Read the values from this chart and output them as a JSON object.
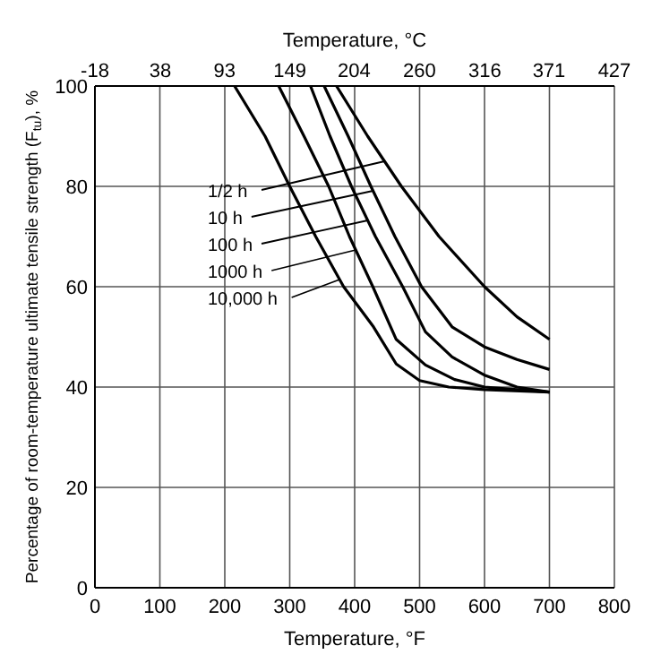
{
  "chart_data": {
    "type": "line",
    "xlabel": "Temperature, °F",
    "x2label": "Temperature, °C",
    "ylabel": "Percentage of room-temperature ultimate tensile strength (F$_{tu}$), %",
    "xlim": [
      0,
      800
    ],
    "xticks": [
      0,
      100,
      200,
      300,
      400,
      500,
      600,
      700,
      800
    ],
    "x2lim": [
      -18,
      427
    ],
    "x2ticks": [
      -18,
      38,
      93,
      149,
      204,
      260,
      316,
      371,
      427
    ],
    "ylim": [
      0,
      100
    ],
    "yticks": [
      0,
      20,
      40,
      60,
      80,
      100
    ],
    "grid": true,
    "marker": "none",
    "line_style": "solid",
    "series": [
      {
        "name": "1/2 h",
        "color": "#000000",
        "x": [
          372,
          420,
          472,
          530,
          600,
          650,
          700
        ],
        "values": [
          100,
          90,
          80,
          70,
          60,
          54,
          49.5
        ]
      },
      {
        "name": "10 h",
        "color": "#000000",
        "x": [
          353,
          390,
          425,
          462,
          503,
          550,
          600,
          650,
          700
        ],
        "values": [
          100,
          90,
          80,
          70,
          60,
          52,
          48,
          45.5,
          43.5
        ]
      },
      {
        "name": "100 h",
        "color": "#000000",
        "x": [
          332,
          362,
          395,
          432,
          474,
          509,
          550,
          601,
          650,
          700
        ],
        "values": [
          100,
          90,
          80,
          70,
          60,
          51,
          46,
          42.3,
          40,
          39
        ]
      },
      {
        "name": "1000 h",
        "color": "#000000",
        "x": [
          283,
          322,
          360,
          392,
          428,
          464,
          509,
          554,
          600,
          700
        ],
        "values": [
          100,
          90,
          80,
          70,
          60,
          49.5,
          44.4,
          41.5,
          40,
          39
        ]
      },
      {
        "name": "10,000 h",
        "color": "#000000",
        "x": [
          215,
          262,
          300,
          340,
          383,
          429,
          464,
          500,
          545,
          600,
          700
        ],
        "values": [
          100,
          90,
          80,
          70,
          60,
          52,
          44.6,
          41.3,
          40,
          39.5,
          39
        ]
      }
    ]
  }
}
